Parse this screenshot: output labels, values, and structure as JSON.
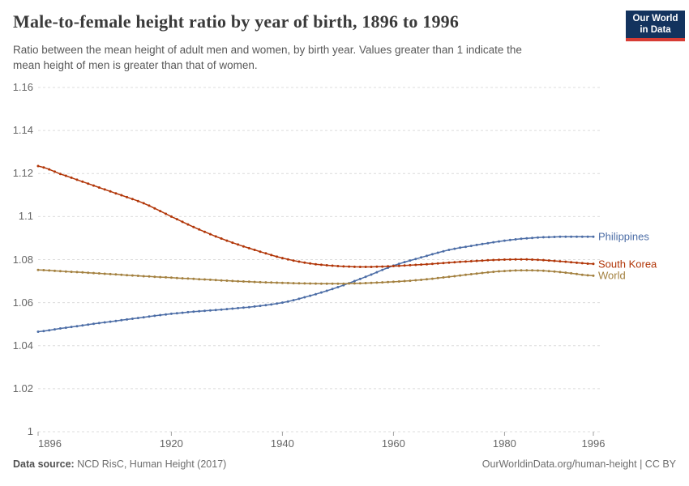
{
  "header": {
    "title": "Male-to-female height ratio by year of birth, 1896 to 1996",
    "subtitle_lines": [
      "Ratio between the mean height of adult men and women, by birth year. Values greater than 1 indicate the",
      "mean height of men is greater than that of women."
    ],
    "logo": {
      "line1": "Our World",
      "line2": "in Data"
    }
  },
  "footer": {
    "source_label": "Data source:",
    "source_text": "NCD RisC, Human Height (2017)",
    "credit": "OurWorldinData.org/human-height | CC BY"
  },
  "colors": {
    "grid": "#dcdcdc",
    "axis_tick": "#a0a0a0",
    "tick_text": "#666666",
    "philippines": "#4C6DA6",
    "south_korea": "#B13507",
    "world": "#A3803F"
  },
  "chart_data": {
    "type": "line",
    "title": "Male-to-female height ratio by year of birth, 1896 to 1996",
    "xlabel": "",
    "ylabel": "",
    "xlim": [
      1896,
      1996
    ],
    "ylim": [
      1,
      1.16
    ],
    "xticks": [
      1896,
      1920,
      1940,
      1960,
      1980,
      1996
    ],
    "yticks": [
      1,
      1.02,
      1.04,
      1.06,
      1.08,
      1.1,
      1.12,
      1.14,
      1.16
    ],
    "grid": "horizontal-dashed",
    "legend_position": "labels-at-line-ends-right",
    "marker": "dot-every-year",
    "x": [
      1896,
      1900,
      1905,
      1910,
      1915,
      1920,
      1925,
      1930,
      1935,
      1940,
      1945,
      1950,
      1955,
      1960,
      1965,
      1970,
      1975,
      1980,
      1985,
      1990,
      1996
    ],
    "series": [
      {
        "name": "Philippines",
        "color": "#4C6DA6",
        "values": [
          1.0465,
          1.048,
          1.0498,
          1.0515,
          1.0532,
          1.0548,
          1.056,
          1.057,
          1.0582,
          1.06,
          1.0632,
          1.0672,
          1.072,
          1.0772,
          1.081,
          1.0845,
          1.0868,
          1.0888,
          1.0901,
          1.0906,
          1.0906
        ]
      },
      {
        "name": "South Korea",
        "color": "#B13507",
        "values": [
          1.1235,
          1.1198,
          1.1153,
          1.1108,
          1.1062,
          1.1,
          1.094,
          1.0888,
          1.0845,
          1.0807,
          1.0782,
          1.077,
          1.0766,
          1.077,
          1.0777,
          1.0786,
          1.0794,
          1.08,
          1.08,
          1.0792,
          1.078
        ]
      },
      {
        "name": "World",
        "color": "#A3803F",
        "values": [
          1.0752,
          1.0746,
          1.0739,
          1.0731,
          1.0723,
          1.0716,
          1.0709,
          1.0702,
          1.0696,
          1.0692,
          1.0689,
          1.0688,
          1.0691,
          1.0697,
          1.0706,
          1.072,
          1.0735,
          1.0747,
          1.075,
          1.0742,
          1.0725
        ]
      }
    ]
  }
}
